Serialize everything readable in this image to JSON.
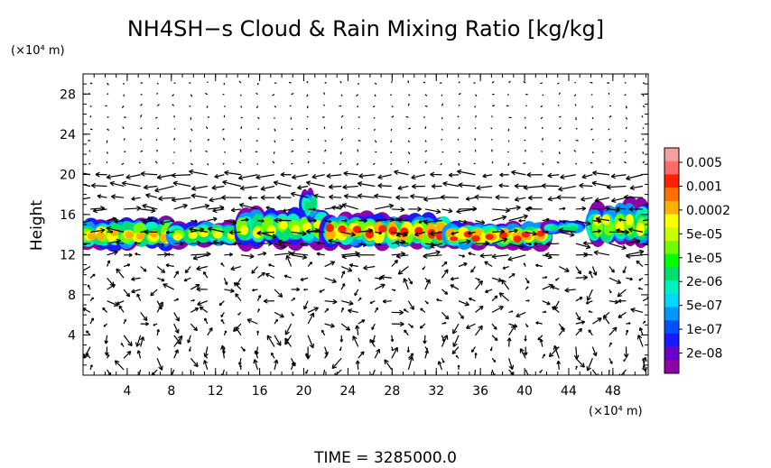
{
  "chart_data": {
    "type": "heatmap",
    "title": "NH4SH−s Cloud & Rain Mixing Ratio [kg/kg]",
    "ylabel": "Height",
    "x_unit": "(×10⁴ m)",
    "y_unit": "(×10⁴ m)",
    "x_ticks": [
      4,
      8,
      12,
      16,
      20,
      24,
      28,
      32,
      36,
      40,
      44,
      48
    ],
    "y_ticks": [
      4,
      8,
      12,
      16,
      20,
      24,
      28
    ],
    "xlim": [
      0,
      51.2
    ],
    "ylim": [
      0,
      30
    ],
    "grid": false,
    "footer": "TIME = 3285000.0",
    "colorbar": {
      "labels": [
        "0.005",
        "0.001",
        "0.0002",
        "5e-05",
        "1e-05",
        "2e-06",
        "5e-07",
        "1e-07",
        "2e-08"
      ],
      "colors": [
        "#f4a0a0",
        "#ff6a6a",
        "#ff2000",
        "#ff7000",
        "#ffb000",
        "#ffff00",
        "#c8ff00",
        "#70ff00",
        "#00ff00",
        "#00e070",
        "#00f0c0",
        "#00d8ff",
        "#0098ff",
        "#0050ff",
        "#1a1aff",
        "#6a00c8",
        "#8e00a8"
      ]
    },
    "cloud_layer": [
      {
        "x": [
          0,
          8
        ],
        "y": [
          12.5,
          16.0
        ],
        "peak": 0.0002
      },
      {
        "x": [
          8,
          14
        ],
        "y": [
          12.8,
          15.6
        ],
        "peak": 5e-05
      },
      {
        "x": [
          14,
          22
        ],
        "y": [
          12.8,
          17.0
        ],
        "peak": 5e-05
      },
      {
        "x": [
          20,
          21
        ],
        "y": [
          15.5,
          19.0
        ],
        "peak": 1e-06
      },
      {
        "x": [
          22,
          33
        ],
        "y": [
          12.6,
          16.5
        ],
        "peak": 0.001
      },
      {
        "x": [
          33,
          42
        ],
        "y": [
          12.6,
          15.5
        ],
        "peak": 0.001
      },
      {
        "x": [
          42,
          45
        ],
        "y": [
          14.0,
          15.6
        ],
        "peak": 1e-06
      },
      {
        "x": [
          46,
          51.2
        ],
        "y": [
          12.8,
          17.8
        ],
        "peak": 5e-05
      }
    ]
  }
}
